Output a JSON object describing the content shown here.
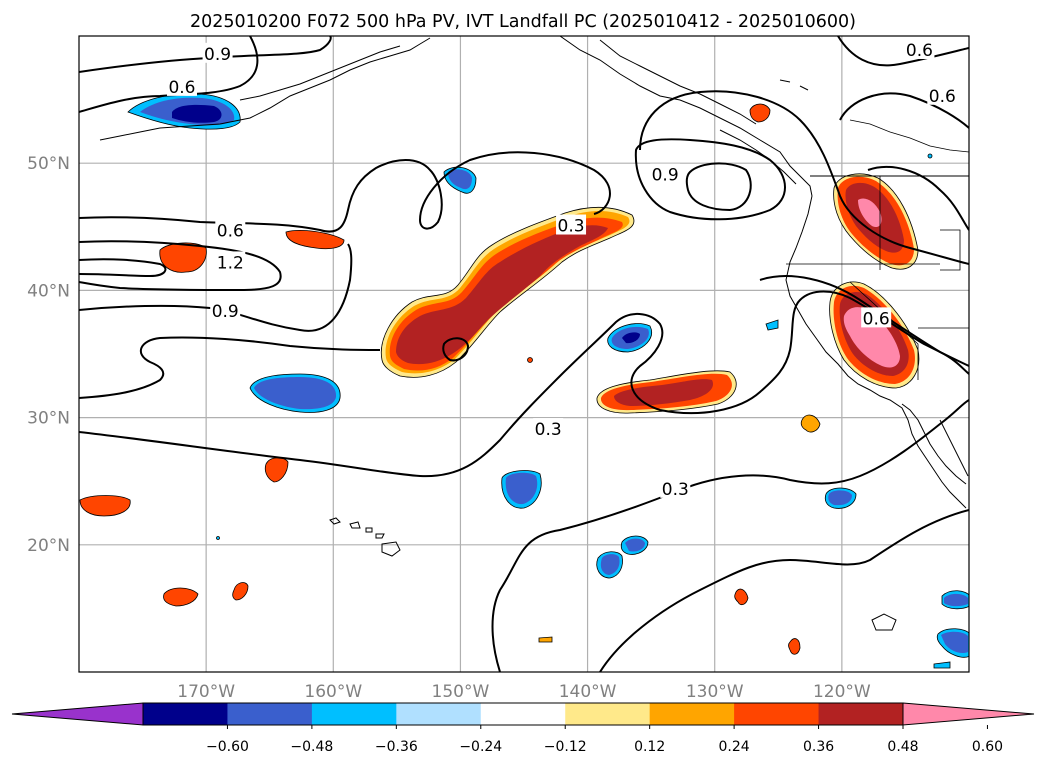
{
  "title": "2025010200 F072 500 hPa PV, IVT Landfall PC (2025010412 - 2025010600)",
  "map": {
    "projection": "cylindrical",
    "lon_range": [
      -180,
      -110
    ],
    "lat_range": [
      10,
      60
    ],
    "gridlines": true,
    "longitude_ticks": [
      {
        "lon": -170,
        "label": "170°W"
      },
      {
        "lon": -160,
        "label": "160°W"
      },
      {
        "lon": -150,
        "label": "150°W"
      },
      {
        "lon": -140,
        "label": "140°W"
      },
      {
        "lon": -130,
        "label": "130°W"
      },
      {
        "lon": -120,
        "label": "120°W"
      }
    ],
    "latitude_ticks": [
      {
        "lat": 20,
        "label": "20°N"
      },
      {
        "lat": 30,
        "label": "30°N"
      },
      {
        "lat": 40,
        "label": "40°N"
      },
      {
        "lat": 50,
        "label": "50°N"
      }
    ],
    "contour_labels": [
      {
        "text": "0.9",
        "lon": -169.1,
        "lat": 58.6
      },
      {
        "text": "0.6",
        "lon": -171.9,
        "lat": 56.0
      },
      {
        "text": "0.6",
        "lon": -168.1,
        "lat": 44.7
      },
      {
        "text": "1.2",
        "lon": -168.1,
        "lat": 42.2
      },
      {
        "text": "0.9",
        "lon": -168.5,
        "lat": 38.4
      },
      {
        "text": "0.3",
        "lon": -141.3,
        "lat": 45.1
      },
      {
        "text": "0.9",
        "lon": -133.9,
        "lat": 49.1
      },
      {
        "text": "0.3",
        "lon": -143.1,
        "lat": 29.1
      },
      {
        "text": "0.3",
        "lon": -133.1,
        "lat": 24.4
      },
      {
        "text": "0.6",
        "lon": -113.9,
        "lat": 58.9
      },
      {
        "text": "0.6",
        "lon": -112.1,
        "lat": 55.3
      },
      {
        "text": "0.6",
        "lon": -117.3,
        "lat": 37.8
      }
    ]
  },
  "colorbar": {
    "extend": "both",
    "colors": [
      "#9932cc",
      "#00008b",
      "#3a5fcd",
      "#00bfff",
      "#b0e0ff",
      "#ffffff",
      "#ffe98a",
      "#ffa500",
      "#ff4500",
      "#b22222",
      "#ff88aa"
    ],
    "tick_labels": [
      "−0.60",
      "−0.48",
      "−0.36",
      "−0.24",
      "−0.12",
      "0.12",
      "0.24",
      "0.36",
      "0.48",
      "0.60"
    ]
  },
  "colors": {
    "grid": "#b0b0b0",
    "contour": "#000000",
    "tick_label": "#808080"
  }
}
